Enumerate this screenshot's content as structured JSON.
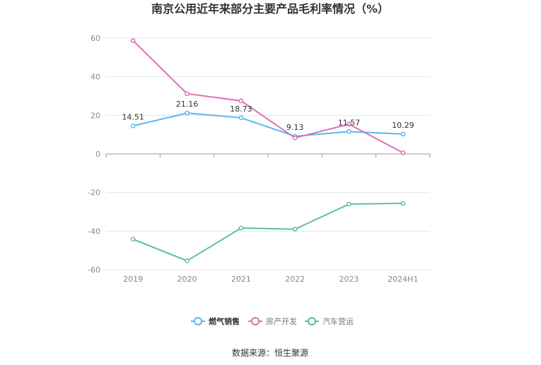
{
  "chart_data": {
    "type": "line",
    "title": "南京公用近年来部分主要产品毛利率情况（%）",
    "categories": [
      "2019",
      "2020",
      "2021",
      "2022",
      "2023",
      "2024H1"
    ],
    "ylim": [
      -60,
      60
    ],
    "yticks": [
      60,
      40,
      20,
      0,
      -20,
      -40,
      -60
    ],
    "grid": true,
    "legend_position": "bottom",
    "series": [
      {
        "name": "燃气销售",
        "color": "#5ab8ee",
        "values": [
          14.51,
          21.16,
          18.73,
          9.13,
          11.57,
          10.29
        ],
        "labels": [
          "14.51",
          "21.16",
          "18.73",
          "9.13",
          "11.57",
          "10.29"
        ]
      },
      {
        "name": "房产开发",
        "color": "#de6fb8",
        "values": [
          58.7,
          31.2,
          27.5,
          8.3,
          15.4,
          0.6
        ],
        "labels": []
      },
      {
        "name": "汽车营运",
        "color": "#5cbfa2",
        "values": [
          -44.2,
          -55.4,
          -38.4,
          -39.0,
          -26.0,
          -25.6
        ],
        "labels": []
      }
    ]
  },
  "source": "数据来源：恒生聚源"
}
